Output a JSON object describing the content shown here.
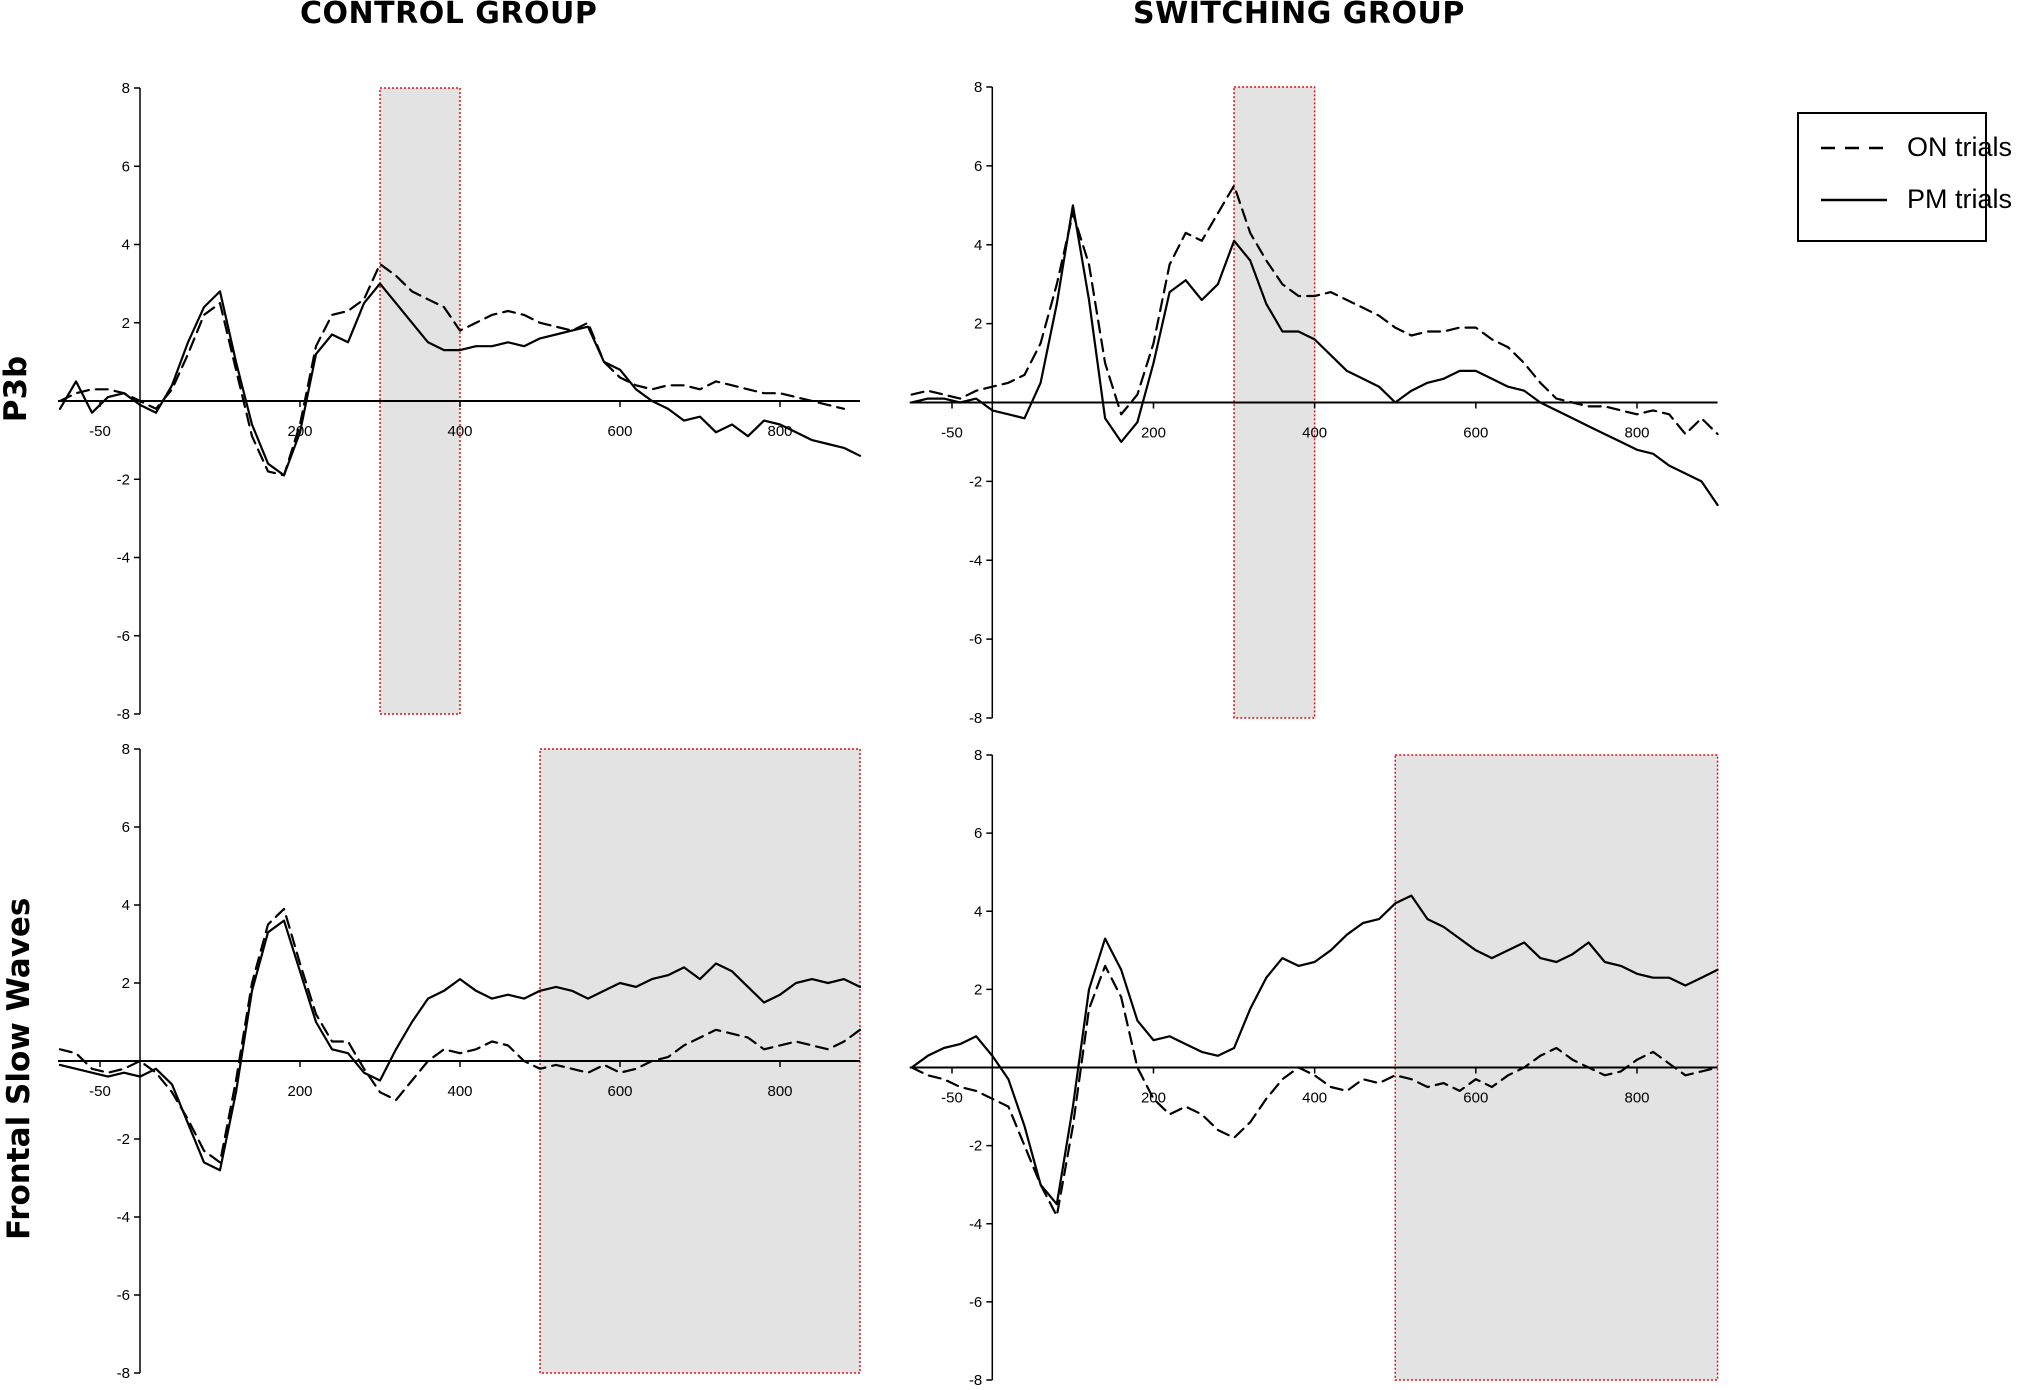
{
  "columns": [
    "CONTROL GROUP",
    "SWITCHING GROUP"
  ],
  "rows": [
    "P3b",
    "Frontal Slow Waves"
  ],
  "legend": {
    "on_label": "ON trials",
    "pm_label": "PM trials"
  },
  "colors": {
    "line": "#000000",
    "shade": "#e3e3e3",
    "shade_border": "#e01010"
  },
  "chart_data": [
    {
      "type": "line",
      "group": "CONTROL GROUP",
      "component": "P3b",
      "xlim": [
        -100,
        900
      ],
      "ylim": [
        -8,
        8
      ],
      "xticks": [
        -50,
        200,
        400,
        600,
        800
      ],
      "xtick_labels": [
        "-50",
        "200",
        "400",
        "600",
        "800"
      ],
      "yticks": [
        8,
        6,
        4,
        2,
        -2,
        -4,
        -6,
        -8
      ],
      "ytick_labels": [
        "8",
        "6",
        "4",
        "2",
        "-2",
        "-4",
        "-6",
        "-8"
      ],
      "highlight": [
        300,
        400
      ],
      "series": [
        {
          "name": "ON trials",
          "style": "dashed",
          "x": [
            -100,
            -80,
            -60,
            -40,
            -20,
            0,
            20,
            40,
            60,
            80,
            100,
            120,
            140,
            160,
            180,
            200,
            220,
            240,
            260,
            280,
            300,
            320,
            340,
            360,
            380,
            400,
            420,
            440,
            460,
            480,
            500,
            520,
            540,
            560,
            580,
            600,
            620,
            640,
            660,
            680,
            700,
            720,
            740,
            760,
            780,
            800,
            820,
            840,
            860,
            880
          ],
          "y": [
            0.0,
            0.2,
            0.3,
            0.3,
            0.2,
            0.0,
            -0.2,
            0.3,
            1.2,
            2.2,
            2.5,
            0.8,
            -0.9,
            -1.8,
            -1.9,
            -0.6,
            1.4,
            2.2,
            2.3,
            2.6,
            3.5,
            3.2,
            2.8,
            2.6,
            2.4,
            1.8,
            2.0,
            2.2,
            2.3,
            2.2,
            2.0,
            1.9,
            1.8,
            2.0,
            1.0,
            0.6,
            0.4,
            0.3,
            0.4,
            0.4,
            0.3,
            0.5,
            0.4,
            0.3,
            0.2,
            0.2,
            0.1,
            0.0,
            -0.1,
            -0.2
          ]
        },
        {
          "name": "PM trials",
          "style": "solid",
          "x": [
            -100,
            -80,
            -60,
            -40,
            -20,
            0,
            20,
            40,
            60,
            80,
            100,
            120,
            140,
            160,
            180,
            200,
            220,
            240,
            260,
            280,
            300,
            320,
            340,
            360,
            380,
            400,
            420,
            440,
            460,
            480,
            500,
            520,
            540,
            560,
            580,
            600,
            620,
            640,
            660,
            680,
            700,
            720,
            740,
            760,
            780,
            800,
            820,
            840,
            860,
            880,
            900
          ],
          "y": [
            -0.2,
            0.5,
            -0.3,
            0.1,
            0.2,
            -0.1,
            -0.3,
            0.4,
            1.5,
            2.4,
            2.8,
            1.0,
            -0.6,
            -1.6,
            -1.9,
            -0.8,
            1.2,
            1.7,
            1.5,
            2.5,
            3.0,
            2.5,
            2.0,
            1.5,
            1.3,
            1.3,
            1.4,
            1.4,
            1.5,
            1.4,
            1.6,
            1.7,
            1.8,
            1.9,
            1.0,
            0.8,
            0.3,
            0.0,
            -0.2,
            -0.5,
            -0.4,
            -0.8,
            -0.6,
            -0.9,
            -0.5,
            -0.6,
            -0.8,
            -1.0,
            -1.1,
            -1.2,
            -1.4
          ]
        }
      ]
    },
    {
      "type": "line",
      "group": "SWITCHING GROUP",
      "component": "P3b",
      "xlim": [
        -100,
        900
      ],
      "ylim": [
        -8,
        8
      ],
      "xticks": [
        -50,
        200,
        400,
        600,
        800
      ],
      "xtick_labels": [
        "-50",
        "200",
        "400",
        "600",
        "800"
      ],
      "yticks": [
        8,
        6,
        4,
        2,
        -2,
        -4,
        -6,
        -8
      ],
      "ytick_labels": [
        "8",
        "6",
        "4",
        "2",
        "-2",
        "-4",
        "-6",
        "-8"
      ],
      "highlight": [
        300,
        400
      ],
      "series": [
        {
          "name": "ON trials",
          "style": "dashed",
          "x": [
            -100,
            -80,
            -60,
            -40,
            -20,
            0,
            20,
            40,
            60,
            80,
            100,
            120,
            140,
            160,
            180,
            200,
            220,
            240,
            260,
            280,
            300,
            320,
            340,
            360,
            380,
            400,
            420,
            440,
            460,
            480,
            500,
            520,
            540,
            560,
            580,
            600,
            620,
            640,
            660,
            680,
            700,
            720,
            740,
            760,
            780,
            800,
            820,
            840,
            860,
            880,
            900
          ],
          "y": [
            0.2,
            0.3,
            0.2,
            0.1,
            0.3,
            0.4,
            0.5,
            0.7,
            1.5,
            3.0,
            4.8,
            3.5,
            1.0,
            -0.3,
            0.2,
            1.5,
            3.5,
            4.3,
            4.1,
            4.8,
            5.5,
            4.3,
            3.6,
            3.0,
            2.7,
            2.7,
            2.8,
            2.6,
            2.4,
            2.2,
            1.9,
            1.7,
            1.8,
            1.8,
            1.9,
            1.9,
            1.6,
            1.4,
            1.0,
            0.5,
            0.1,
            0.0,
            -0.1,
            -0.1,
            -0.2,
            -0.3,
            -0.2,
            -0.3,
            -0.8,
            -0.4,
            -0.8
          ]
        },
        {
          "name": "PM trials",
          "style": "solid",
          "x": [
            -100,
            -80,
            -60,
            -40,
            -20,
            0,
            20,
            40,
            60,
            80,
            100,
            120,
            140,
            160,
            180,
            200,
            220,
            240,
            260,
            280,
            300,
            320,
            340,
            360,
            380,
            400,
            420,
            440,
            460,
            480,
            500,
            520,
            540,
            560,
            580,
            600,
            620,
            640,
            660,
            680,
            700,
            720,
            740,
            760,
            780,
            800,
            820,
            840,
            860,
            880,
            900
          ],
          "y": [
            0.0,
            0.1,
            0.1,
            0.0,
            0.1,
            -0.2,
            -0.3,
            -0.4,
            0.5,
            2.5,
            5.0,
            2.6,
            -0.4,
            -1.0,
            -0.5,
            1.0,
            2.8,
            3.1,
            2.6,
            3.0,
            4.1,
            3.6,
            2.5,
            1.8,
            1.8,
            1.6,
            1.2,
            0.8,
            0.6,
            0.4,
            0.0,
            0.3,
            0.5,
            0.6,
            0.8,
            0.8,
            0.6,
            0.4,
            0.3,
            0.0,
            -0.2,
            -0.4,
            -0.6,
            -0.8,
            -1.0,
            -1.2,
            -1.3,
            -1.6,
            -1.8,
            -2.0,
            -2.6
          ]
        }
      ]
    },
    {
      "type": "line",
      "group": "CONTROL GROUP",
      "component": "Frontal Slow Waves",
      "xlim": [
        -100,
        900
      ],
      "ylim": [
        -8,
        8
      ],
      "xticks": [
        -50,
        200,
        400,
        600,
        800
      ],
      "xtick_labels": [
        "-50",
        "200",
        "400",
        "600",
        "800"
      ],
      "yticks": [
        8,
        6,
        4,
        2,
        -2,
        -4,
        -6,
        -8
      ],
      "ytick_labels": [
        "8",
        "6",
        "4",
        "2",
        "-2",
        "-4",
        "-6",
        "-8"
      ],
      "highlight": [
        500,
        900
      ],
      "series": [
        {
          "name": "ON trials",
          "style": "dashed",
          "x": [
            -100,
            -80,
            -60,
            -40,
            -20,
            0,
            20,
            40,
            60,
            80,
            100,
            120,
            140,
            160,
            180,
            200,
            220,
            240,
            260,
            280,
            300,
            320,
            340,
            360,
            380,
            400,
            420,
            440,
            460,
            480,
            500,
            520,
            540,
            560,
            580,
            600,
            620,
            640,
            660,
            680,
            700,
            720,
            740,
            760,
            780,
            800,
            820,
            840,
            860,
            880,
            900
          ],
          "y": [
            0.3,
            0.2,
            -0.2,
            -0.3,
            -0.2,
            0.0,
            -0.3,
            -0.8,
            -1.5,
            -2.3,
            -2.6,
            -0.5,
            2.0,
            3.5,
            3.9,
            2.5,
            1.2,
            0.5,
            0.5,
            -0.2,
            -0.8,
            -1.0,
            -0.5,
            0.0,
            0.3,
            0.2,
            0.3,
            0.5,
            0.4,
            0.0,
            -0.2,
            -0.1,
            -0.2,
            -0.3,
            -0.1,
            -0.3,
            -0.2,
            0.0,
            0.1,
            0.4,
            0.6,
            0.8,
            0.7,
            0.6,
            0.3,
            0.4,
            0.5,
            0.4,
            0.3,
            0.5,
            0.8
          ]
        },
        {
          "name": "PM trials",
          "style": "solid",
          "x": [
            -100,
            -80,
            -60,
            -40,
            -20,
            0,
            20,
            40,
            60,
            80,
            100,
            120,
            140,
            160,
            180,
            200,
            220,
            240,
            260,
            280,
            300,
            320,
            340,
            360,
            380,
            400,
            420,
            440,
            460,
            480,
            500,
            520,
            540,
            560,
            580,
            600,
            620,
            640,
            660,
            680,
            700,
            720,
            740,
            760,
            780,
            800,
            820,
            840,
            860,
            880,
            900
          ],
          "y": [
            -0.1,
            -0.2,
            -0.3,
            -0.4,
            -0.3,
            -0.4,
            -0.2,
            -0.6,
            -1.6,
            -2.6,
            -2.8,
            -0.8,
            1.8,
            3.3,
            3.6,
            2.3,
            1.0,
            0.3,
            0.2,
            -0.3,
            -0.5,
            0.3,
            1.0,
            1.6,
            1.8,
            2.1,
            1.8,
            1.6,
            1.7,
            1.6,
            1.8,
            1.9,
            1.8,
            1.6,
            1.8,
            2.0,
            1.9,
            2.1,
            2.2,
            2.4,
            2.1,
            2.5,
            2.3,
            1.9,
            1.5,
            1.7,
            2.0,
            2.1,
            2.0,
            2.1,
            1.9
          ]
        }
      ]
    },
    {
      "type": "line",
      "group": "SWITCHING GROUP",
      "component": "Frontal Slow Waves",
      "xlim": [
        -100,
        900
      ],
      "ylim": [
        -8,
        8
      ],
      "xticks": [
        -50,
        200,
        400,
        600,
        800
      ],
      "xtick_labels": [
        "-50",
        "200",
        "400",
        "600",
        "800"
      ],
      "yticks": [
        8,
        6,
        4,
        2,
        -2,
        -4,
        -6,
        -8
      ],
      "ytick_labels": [
        "8",
        "6",
        "4",
        "2",
        "-2",
        "-4",
        "-6",
        "-8"
      ],
      "highlight": [
        500,
        900
      ],
      "series": [
        {
          "name": "ON trials",
          "style": "dashed",
          "x": [
            -100,
            -80,
            -60,
            -40,
            -20,
            0,
            20,
            40,
            60,
            80,
            100,
            120,
            140,
            160,
            180,
            200,
            220,
            240,
            260,
            280,
            300,
            320,
            340,
            360,
            380,
            400,
            420,
            440,
            460,
            480,
            500,
            520,
            540,
            560,
            580,
            600,
            620,
            640,
            660,
            680,
            700,
            720,
            740,
            760,
            780,
            800,
            820,
            840,
            860,
            880,
            900
          ],
          "y": [
            0.0,
            -0.2,
            -0.3,
            -0.5,
            -0.6,
            -0.8,
            -1.0,
            -2.0,
            -3.0,
            -3.8,
            -1.5,
            1.5,
            2.6,
            1.8,
            0.0,
            -0.8,
            -1.2,
            -1.0,
            -1.2,
            -1.6,
            -1.8,
            -1.4,
            -0.8,
            -0.3,
            0.0,
            -0.2,
            -0.5,
            -0.6,
            -0.3,
            -0.4,
            -0.2,
            -0.3,
            -0.5,
            -0.4,
            -0.6,
            -0.3,
            -0.5,
            -0.2,
            0.0,
            0.3,
            0.5,
            0.2,
            0.0,
            -0.2,
            -0.1,
            0.2,
            0.4,
            0.1,
            -0.2,
            -0.1,
            0.0
          ]
        },
        {
          "name": "PM trials",
          "style": "solid",
          "x": [
            -100,
            -80,
            -60,
            -40,
            -20,
            0,
            20,
            40,
            60,
            80,
            100,
            120,
            140,
            160,
            180,
            200,
            220,
            240,
            260,
            280,
            300,
            320,
            340,
            360,
            380,
            400,
            420,
            440,
            460,
            480,
            500,
            520,
            540,
            560,
            580,
            600,
            620,
            640,
            660,
            680,
            700,
            720,
            740,
            760,
            780,
            800,
            820,
            840,
            860,
            880,
            900
          ],
          "y": [
            0.0,
            0.3,
            0.5,
            0.6,
            0.8,
            0.3,
            -0.3,
            -1.5,
            -3.0,
            -3.5,
            -1.0,
            2.0,
            3.3,
            2.5,
            1.2,
            0.7,
            0.8,
            0.6,
            0.4,
            0.3,
            0.5,
            1.5,
            2.3,
            2.8,
            2.6,
            2.7,
            3.0,
            3.4,
            3.7,
            3.8,
            4.2,
            4.4,
            3.8,
            3.6,
            3.3,
            3.0,
            2.8,
            3.0,
            3.2,
            2.8,
            2.7,
            2.9,
            3.2,
            2.7,
            2.6,
            2.4,
            2.3,
            2.3,
            2.1,
            2.3,
            2.5
          ]
        }
      ]
    }
  ]
}
